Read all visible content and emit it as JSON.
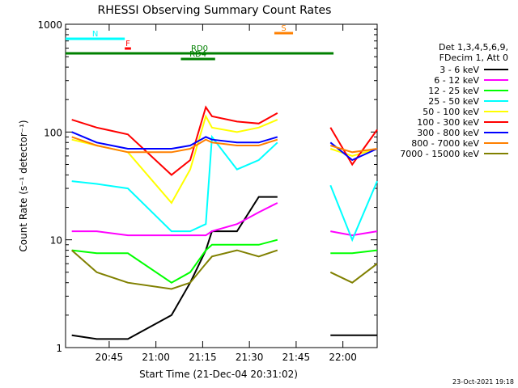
{
  "chart_data": {
    "type": "line",
    "title": "RHESSI Observing Summary Count Rates",
    "xlabel": "Start Time (21-Dec-04 20:31:02)",
    "ylabel": "Count Rate (s⁻¹ detector⁻¹)",
    "yscale": "log",
    "ylim": [
      1,
      1000
    ],
    "xlim_minutes": [
      0,
      100
    ],
    "x_tick_labels": [
      "20:45",
      "21:00",
      "21:15",
      "21:30",
      "21:45",
      "22:00"
    ],
    "y_tick_labels": [
      "1",
      "10",
      "100",
      "1000"
    ],
    "legend_header": [
      "Det 1,3,4,5,6,9,",
      "FDecim 1, Att 0"
    ],
    "legend_position": "right",
    "timestamp": "23-Oct-2021 19:18",
    "series": [
      {
        "name": "3 - 6 keV",
        "color": "#000000",
        "values": [
          1.3,
          1.2,
          1.2,
          2,
          4,
          8,
          12,
          12,
          25,
          25,
          null,
          null,
          1.3,
          1.3,
          1.3
        ]
      },
      {
        "name": "6 - 12 keV",
        "color": "#ff00ff",
        "values": [
          12,
          12,
          11,
          11,
          11,
          11,
          12,
          14,
          18,
          22,
          null,
          null,
          12,
          11,
          12
        ]
      },
      {
        "name": "12 - 25 keV",
        "color": "#00ff00",
        "values": [
          8,
          7.5,
          7.5,
          4,
          5,
          8,
          9,
          9,
          9,
          10,
          null,
          null,
          7.5,
          7.5,
          8
        ]
      },
      {
        "name": "25 - 50 keV",
        "color": "#00ffff",
        "values": [
          35,
          33,
          30,
          12,
          12,
          14,
          90,
          45,
          55,
          80,
          null,
          null,
          32,
          10,
          35
        ]
      },
      {
        "name": "50 - 100 keV",
        "color": "#ffff00",
        "values": [
          85,
          75,
          65,
          22,
          45,
          140,
          110,
          100,
          110,
          130,
          null,
          null,
          70,
          60,
          70
        ]
      },
      {
        "name": "100 - 300 keV",
        "color": "#ff0000",
        "values": [
          130,
          110,
          95,
          40,
          55,
          170,
          140,
          125,
          120,
          150,
          null,
          null,
          110,
          50,
          105
        ]
      },
      {
        "name": "300 - 800 keV",
        "color": "#0000ff",
        "values": [
          100,
          80,
          70,
          70,
          75,
          90,
          85,
          80,
          80,
          90,
          null,
          null,
          80,
          55,
          70
        ]
      },
      {
        "name": "800 - 7000 keV",
        "color": "#ff8000",
        "values": [
          90,
          75,
          65,
          65,
          70,
          85,
          80,
          75,
          75,
          85,
          null,
          null,
          75,
          65,
          70
        ]
      },
      {
        "name": "7000 - 15000 keV",
        "color": "#808000",
        "values": [
          8,
          5,
          4,
          3.5,
          4,
          6,
          7,
          8,
          7,
          8,
          null,
          null,
          5,
          4,
          6
        ]
      }
    ],
    "x_minutes": [
      2,
      10,
      20,
      34,
      40,
      45,
      47,
      55,
      62,
      68,
      70,
      78,
      85,
      92,
      100
    ],
    "annotations": [
      {
        "label": "N",
        "color": "#00ffff",
        "start": 0,
        "end": 19
      },
      {
        "label": "F",
        "color": "#ff0000",
        "start": 19,
        "end": 21
      },
      {
        "label": "RD0",
        "color": "#008000",
        "start": 0,
        "end": 86
      },
      {
        "label": "RD4",
        "color": "#008000",
        "start": 37,
        "end": 48
      },
      {
        "label": "S",
        "color": "#ff8000",
        "start": 67,
        "end": 73
      }
    ]
  }
}
